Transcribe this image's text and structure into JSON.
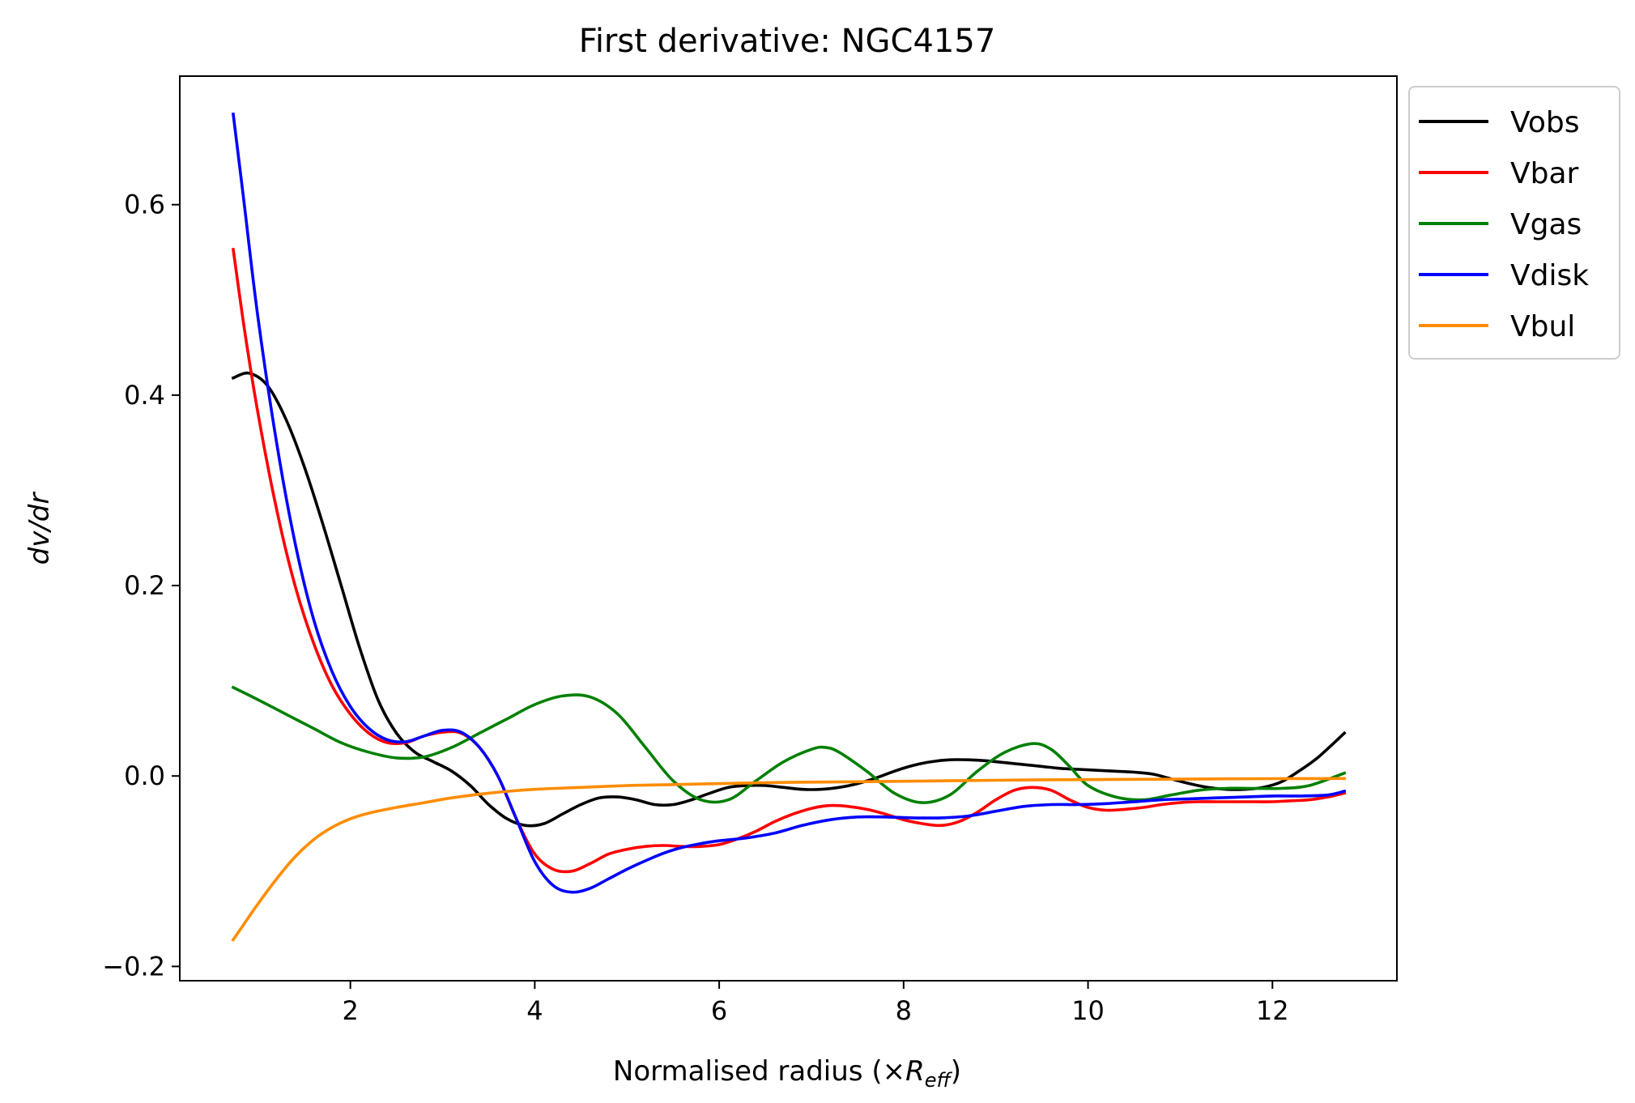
{
  "chart_data": {
    "type": "line",
    "title": "First derivative: NGC4157",
    "xlabel": "Normalised radius (×",
    "xlabel_symbol": "R",
    "xlabel_subscript": "eff",
    "xlabel_close": ")",
    "ylabel": "dv/dr",
    "xlim": [
      0.15,
      13.35
    ],
    "ylim": [
      -0.215,
      0.735
    ],
    "xticks": [
      2,
      4,
      6,
      8,
      10,
      12
    ],
    "xtick_labels": [
      "2",
      "4",
      "6",
      "8",
      "10",
      "12"
    ],
    "yticks": [
      -0.2,
      0.0,
      0.2,
      0.4,
      0.6
    ],
    "ytick_labels": [
      "−0.2",
      "0.0",
      "0.2",
      "0.4",
      "0.6"
    ],
    "grid": false,
    "legend_position": "outside upper right",
    "series": [
      {
        "name": "Vobs",
        "color": "#000000",
        "x": [
          0.73,
          0.9,
          1.1,
          1.3,
          1.5,
          1.7,
          1.9,
          2.1,
          2.3,
          2.5,
          2.7,
          2.9,
          3.1,
          3.3,
          3.5,
          3.7,
          3.9,
          4.1,
          4.3,
          4.5,
          4.7,
          4.9,
          5.1,
          5.3,
          5.5,
          5.7,
          5.9,
          6.1,
          6.3,
          6.5,
          6.7,
          6.9,
          7.1,
          7.3,
          7.5,
          7.7,
          7.9,
          8.1,
          8.3,
          8.5,
          8.7,
          8.9,
          9.1,
          9.3,
          9.5,
          9.7,
          9.9,
          10.1,
          10.3,
          10.5,
          10.7,
          10.9,
          11.1,
          11.3,
          11.5,
          11.7,
          11.9,
          12.1,
          12.3,
          12.5,
          12.78
        ],
        "y": [
          0.418,
          0.423,
          0.41,
          0.375,
          0.325,
          0.265,
          0.2,
          0.135,
          0.08,
          0.045,
          0.025,
          0.015,
          0.005,
          -0.01,
          -0.03,
          -0.045,
          -0.052,
          -0.05,
          -0.04,
          -0.03,
          -0.023,
          -0.022,
          -0.025,
          -0.03,
          -0.03,
          -0.025,
          -0.018,
          -0.012,
          -0.01,
          -0.01,
          -0.012,
          -0.014,
          -0.014,
          -0.012,
          -0.008,
          -0.002,
          0.005,
          0.011,
          0.015,
          0.017,
          0.017,
          0.016,
          0.014,
          0.012,
          0.01,
          0.008,
          0.007,
          0.006,
          0.005,
          0.004,
          0.002,
          -0.003,
          -0.008,
          -0.012,
          -0.014,
          -0.014,
          -0.012,
          -0.006,
          0.006,
          0.02,
          0.045
        ]
      },
      {
        "name": "Vbar",
        "color": "#ff0000",
        "x": [
          0.73,
          0.85,
          1.0,
          1.2,
          1.4,
          1.6,
          1.8,
          2.0,
          2.2,
          2.4,
          2.6,
          2.8,
          3.0,
          3.2,
          3.4,
          3.6,
          3.8,
          4.0,
          4.2,
          4.4,
          4.6,
          4.8,
          5.0,
          5.2,
          5.4,
          5.6,
          5.8,
          6.0,
          6.2,
          6.4,
          6.6,
          6.8,
          7.0,
          7.2,
          7.4,
          7.6,
          7.8,
          8.0,
          8.2,
          8.4,
          8.6,
          8.8,
          9.0,
          9.2,
          9.4,
          9.6,
          9.8,
          10.0,
          10.2,
          10.4,
          10.6,
          10.8,
          11.0,
          11.2,
          11.4,
          11.6,
          11.8,
          12.0,
          12.2,
          12.4,
          12.6,
          12.78
        ],
        "y": [
          0.553,
          0.47,
          0.38,
          0.28,
          0.2,
          0.14,
          0.095,
          0.065,
          0.045,
          0.035,
          0.035,
          0.042,
          0.046,
          0.045,
          0.03,
          0.0,
          -0.045,
          -0.082,
          -0.098,
          -0.1,
          -0.092,
          -0.082,
          -0.077,
          -0.074,
          -0.073,
          -0.074,
          -0.074,
          -0.072,
          -0.066,
          -0.058,
          -0.048,
          -0.04,
          -0.034,
          -0.031,
          -0.032,
          -0.035,
          -0.04,
          -0.046,
          -0.05,
          -0.052,
          -0.048,
          -0.038,
          -0.025,
          -0.015,
          -0.012,
          -0.015,
          -0.025,
          -0.033,
          -0.036,
          -0.035,
          -0.033,
          -0.03,
          -0.028,
          -0.027,
          -0.027,
          -0.027,
          -0.027,
          -0.027,
          -0.026,
          -0.025,
          -0.022,
          -0.018
        ]
      },
      {
        "name": "Vgas",
        "color": "#008000",
        "x": [
          0.73,
          1.0,
          1.3,
          1.6,
          1.9,
          2.2,
          2.5,
          2.8,
          3.1,
          3.4,
          3.7,
          4.0,
          4.3,
          4.6,
          4.9,
          5.2,
          5.5,
          5.8,
          6.1,
          6.4,
          6.7,
          7.0,
          7.15,
          7.3,
          7.6,
          7.9,
          8.2,
          8.5,
          8.8,
          9.1,
          9.4,
          9.6,
          9.8,
          10.0,
          10.3,
          10.6,
          10.9,
          11.2,
          11.5,
          11.8,
          12.1,
          12.4,
          12.78
        ],
        "y": [
          0.093,
          0.08,
          0.065,
          0.05,
          0.035,
          0.025,
          0.019,
          0.02,
          0.03,
          0.045,
          0.06,
          0.075,
          0.084,
          0.083,
          0.065,
          0.03,
          -0.005,
          -0.025,
          -0.025,
          -0.005,
          0.015,
          0.028,
          0.03,
          0.025,
          0.005,
          -0.018,
          -0.028,
          -0.02,
          0.005,
          0.025,
          0.034,
          0.028,
          0.01,
          -0.01,
          -0.022,
          -0.025,
          -0.02,
          -0.015,
          -0.013,
          -0.013,
          -0.013,
          -0.01,
          0.003
        ]
      },
      {
        "name": "Vdisk",
        "color": "#0000ff",
        "x": [
          0.73,
          0.85,
          1.0,
          1.2,
          1.4,
          1.6,
          1.8,
          2.0,
          2.2,
          2.4,
          2.6,
          2.8,
          3.0,
          3.2,
          3.4,
          3.6,
          3.8,
          4.0,
          4.2,
          4.4,
          4.6,
          4.8,
          5.0,
          5.2,
          5.4,
          5.6,
          5.8,
          6.0,
          6.3,
          6.6,
          6.9,
          7.2,
          7.5,
          7.8,
          8.1,
          8.4,
          8.7,
          9.0,
          9.3,
          9.6,
          9.9,
          10.2,
          10.5,
          10.8,
          11.1,
          11.4,
          11.7,
          12.0,
          12.3,
          12.6,
          12.78
        ],
        "y": [
          0.695,
          0.6,
          0.48,
          0.35,
          0.245,
          0.165,
          0.11,
          0.073,
          0.05,
          0.038,
          0.036,
          0.042,
          0.048,
          0.046,
          0.03,
          0.0,
          -0.045,
          -0.09,
          -0.115,
          -0.122,
          -0.118,
          -0.108,
          -0.098,
          -0.089,
          -0.081,
          -0.075,
          -0.071,
          -0.068,
          -0.065,
          -0.06,
          -0.052,
          -0.046,
          -0.043,
          -0.043,
          -0.044,
          -0.044,
          -0.042,
          -0.037,
          -0.032,
          -0.03,
          -0.03,
          -0.029,
          -0.027,
          -0.025,
          -0.024,
          -0.023,
          -0.022,
          -0.021,
          -0.021,
          -0.02,
          -0.016
        ]
      },
      {
        "name": "Vbul",
        "color": "#ff8c00",
        "x": [
          0.73,
          0.85,
          1.0,
          1.2,
          1.4,
          1.6,
          1.8,
          2.0,
          2.2,
          2.5,
          2.8,
          3.1,
          3.5,
          4.0,
          4.5,
          5.0,
          5.5,
          6.0,
          6.5,
          7.0,
          7.5,
          8.0,
          8.5,
          9.0,
          9.5,
          10.0,
          10.5,
          11.0,
          11.5,
          12.0,
          12.5,
          12.78
        ],
        "y": [
          -0.172,
          -0.155,
          -0.134,
          -0.108,
          -0.085,
          -0.067,
          -0.054,
          -0.045,
          -0.039,
          -0.033,
          -0.028,
          -0.023,
          -0.018,
          -0.014,
          -0.012,
          -0.01,
          -0.009,
          -0.008,
          -0.007,
          -0.0065,
          -0.006,
          -0.0055,
          -0.005,
          -0.0045,
          -0.004,
          -0.0038,
          -0.0035,
          -0.0033,
          -0.003,
          -0.0028,
          -0.0027,
          -0.0026
        ]
      }
    ]
  }
}
